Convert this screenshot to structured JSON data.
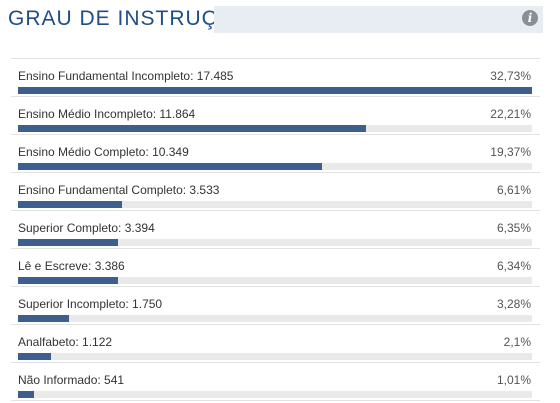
{
  "header": {
    "title": "GRAU DE INSTRUÇÃO",
    "info_icon": "info-icon"
  },
  "colors": {
    "title": "#1f4e85",
    "bar_fill": "#3e5f8e",
    "bar_track": "#e9e9e9",
    "header_bar": "#e8edf3"
  },
  "items": [
    {
      "label": "Ensino Fundamental Incompleto: 17.485",
      "percent": "32,73%",
      "fill_fraction": 1.0
    },
    {
      "label": "Ensino Médio Incompleto: 11.864",
      "percent": "22,21%",
      "fill_fraction": 0.678
    },
    {
      "label": "Ensino Médio Completo: 10.349",
      "percent": "19,37%",
      "fill_fraction": 0.592
    },
    {
      "label": "Ensino Fundamental Completo: 3.533",
      "percent": "6,61%",
      "fill_fraction": 0.202
    },
    {
      "label": "Superior Completo: 3.394",
      "percent": "6,35%",
      "fill_fraction": 0.194
    },
    {
      "label": "Lê e Escreve: 3.386",
      "percent": "6,34%",
      "fill_fraction": 0.194
    },
    {
      "label": "Superior Incompleto: 1.750",
      "percent": "3,28%",
      "fill_fraction": 0.1
    },
    {
      "label": "Analfabeto: 1.122",
      "percent": "2,1%",
      "fill_fraction": 0.064
    },
    {
      "label": "Não Informado: 541",
      "percent": "1,01%",
      "fill_fraction": 0.031
    }
  ]
}
